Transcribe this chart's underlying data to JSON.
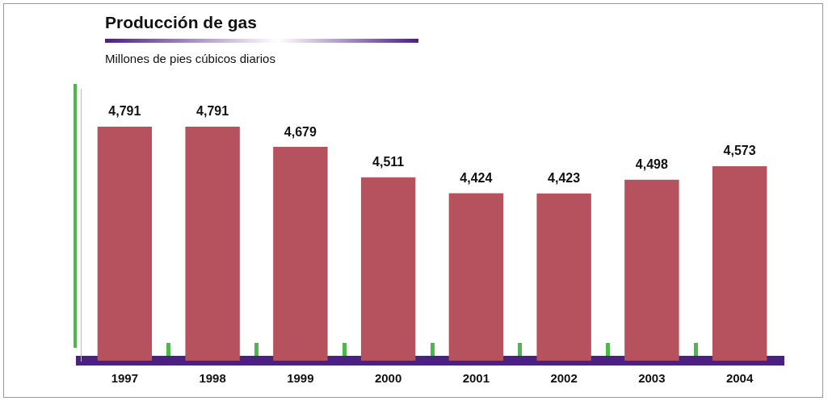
{
  "chart_data": {
    "type": "bar",
    "title": "Producción de gas",
    "subtitle": "Millones de pies cúbicos diarios",
    "categories": [
      "1997",
      "1998",
      "1999",
      "2000",
      "2001",
      "2002",
      "2003",
      "2004"
    ],
    "values": [
      4791,
      4791,
      4679,
      4511,
      4424,
      4423,
      4498,
      4573
    ],
    "value_labels": [
      "4,791",
      "4,791",
      "4,679",
      "4,511",
      "4,424",
      "4,423",
      "4,498",
      "4,573"
    ],
    "color": "#b5525e",
    "ylim": [
      3500,
      5000
    ],
    "tick_labels": "x",
    "grid": false,
    "legend": false
  }
}
